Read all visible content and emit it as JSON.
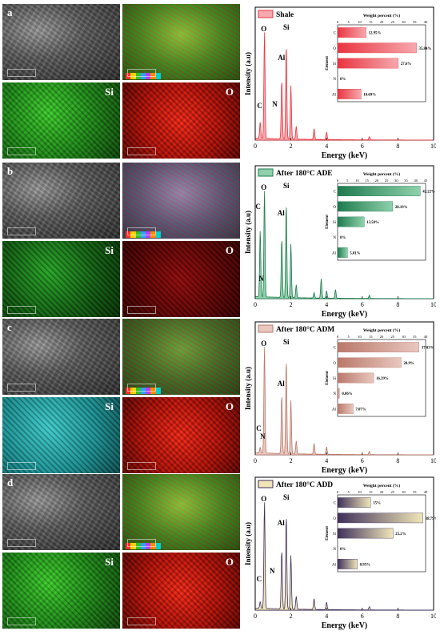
{
  "panels": [
    {
      "letter": "a",
      "tile_classes": [
        "sem",
        "overlay-green",
        "map-green",
        "map-red"
      ],
      "map_labels": [
        "Si",
        "O"
      ],
      "legend": "Shale",
      "color": "#e8343f",
      "fill_light": "#f6a9ae",
      "spectrum_peaks": [
        {
          "label": "C",
          "x": 0.28
        },
        {
          "label": "O",
          "x": 0.52
        },
        {
          "label": "N",
          "x": 1.3
        },
        {
          "label": "Al",
          "x": 1.49
        },
        {
          "label": "Si",
          "x": 1.74
        }
      ],
      "bars": [
        {
          "element": "C",
          "value": 12.95,
          "label": "12.95%"
        },
        {
          "element": "O",
          "value": 35.84,
          "label": "35.84%"
        },
        {
          "element": "Si",
          "value": 27.6,
          "label": "27.6%"
        },
        {
          "element": "N",
          "value": 0,
          "label": "0%"
        },
        {
          "element": "Al",
          "value": 10.69,
          "label": "10.69%"
        }
      ]
    },
    {
      "letter": "b",
      "tile_classes": [
        "sem",
        "overlay-purple",
        "map-darkgreen",
        "map-darkred"
      ],
      "map_labels": [
        "Si",
        "O"
      ],
      "legend": "After 180°C ADE",
      "color": "#1e7a4f",
      "fill_light": "#8fd1ac",
      "spectrum_peaks": [
        {
          "label": "C",
          "x": 0.28
        },
        {
          "label": "O",
          "x": 0.52
        },
        {
          "label": "N",
          "x": 0.5
        },
        {
          "label": "Al",
          "x": 1.49
        },
        {
          "label": "Si",
          "x": 1.74
        }
      ],
      "bars": [
        {
          "element": "C",
          "value": 42.22,
          "label": "42.22%"
        },
        {
          "element": "O",
          "value": 28.19,
          "label": "28.19%"
        },
        {
          "element": "Si",
          "value": 13.58,
          "label": "13.58%"
        },
        {
          "element": "N",
          "value": 0,
          "label": "0%"
        },
        {
          "element": "Al",
          "value": 5.01,
          "label": "5.01%"
        }
      ]
    },
    {
      "letter": "c",
      "tile_classes": [
        "sem",
        "overlay-rg",
        "map-cyan",
        "map-red"
      ],
      "map_labels": [
        "Si",
        "O"
      ],
      "legend": "After 180°C ADM",
      "color": "#b9786a",
      "fill_light": "#e9c7bf",
      "spectrum_peaks": [
        {
          "label": "C",
          "x": 0.28
        },
        {
          "label": "O",
          "x": 0.52
        },
        {
          "label": "N",
          "x": 0.4
        },
        {
          "label": "Al",
          "x": 1.49
        },
        {
          "label": "Si",
          "x": 1.74
        }
      ],
      "bars": [
        {
          "element": "C",
          "value": 37.03,
          "label": "37.03%"
        },
        {
          "element": "O",
          "value": 28.9,
          "label": "28.9%"
        },
        {
          "element": "Si",
          "value": 16.39,
          "label": "16.39%"
        },
        {
          "element": "N",
          "value": 0.86,
          "label": "0.86%"
        },
        {
          "element": "Al",
          "value": 7.07,
          "label": "7.07%"
        }
      ]
    },
    {
      "letter": "d",
      "tile_classes": [
        "sem",
        "overlay-green",
        "map-green",
        "map-red"
      ],
      "map_labels": [
        "Si",
        "O"
      ],
      "legend": "After 180°C ADD",
      "color": "#3e2f5a",
      "fill_light": "#f0e6b8",
      "spectrum_peaks": [
        {
          "label": "C",
          "x": 0.28
        },
        {
          "label": "O",
          "x": 0.52
        },
        {
          "label": "N",
          "x": 1.3
        },
        {
          "label": "Al",
          "x": 1.49
        },
        {
          "label": "Si",
          "x": 1.74
        }
      ],
      "bars": [
        {
          "element": "C",
          "value": 15,
          "label": "15%"
        },
        {
          "element": "O",
          "value": 38.79,
          "label": "38.79%"
        },
        {
          "element": "Si",
          "value": 25.2,
          "label": "25.2%"
        },
        {
          "element": "N",
          "value": 0,
          "label": "0%"
        },
        {
          "element": "Al",
          "value": 8.95,
          "label": "8.95%"
        }
      ]
    }
  ],
  "chart_data": [
    {
      "type": "bar",
      "title": "Weight percent (%)",
      "ylabel": "Element",
      "categories": [
        "C",
        "O",
        "Si",
        "N",
        "Al"
      ],
      "values": [
        12.95,
        35.84,
        27.6,
        0,
        10.69
      ],
      "xlim": [
        0,
        40
      ],
      "series_name": "Shale"
    },
    {
      "type": "bar",
      "title": "Weight percent (%)",
      "ylabel": "Element",
      "categories": [
        "C",
        "O",
        "Si",
        "N",
        "Al"
      ],
      "values": [
        42.22,
        28.19,
        13.58,
        0,
        5.01
      ],
      "xlim": [
        0,
        45
      ],
      "series_name": "After 180°C ADE"
    },
    {
      "type": "bar",
      "title": "Weight percent (%)",
      "ylabel": "Element",
      "categories": [
        "C",
        "O",
        "Si",
        "N",
        "Al"
      ],
      "values": [
        37.03,
        28.9,
        16.39,
        0.86,
        7.07
      ],
      "xlim": [
        0,
        40
      ],
      "series_name": "After 180°C ADM"
    },
    {
      "type": "bar",
      "title": "Weight percent (%)",
      "ylabel": "Element",
      "categories": [
        "C",
        "O",
        "Si",
        "N",
        "Al"
      ],
      "values": [
        15,
        38.79,
        25.2,
        0,
        8.95
      ],
      "xlim": [
        0,
        40
      ],
      "series_name": "After 180°C ADD"
    }
  ],
  "axes": {
    "xlabel": "Energy (keV)",
    "ylabel": "Intensity (a.u)",
    "x_ticks": [
      "0",
      "2",
      "4",
      "6",
      "8",
      "10"
    ],
    "bar_title": "Weight percent (%)",
    "bar_ylabel": "Element",
    "bar_ticks_40": [
      "0",
      "5",
      "10",
      "15",
      "20",
      "25",
      "30",
      "35",
      "40"
    ],
    "bar_ticks_45": [
      "0",
      "5",
      "10",
      "15",
      "20",
      "25",
      "30",
      "35",
      "40",
      "45"
    ]
  }
}
